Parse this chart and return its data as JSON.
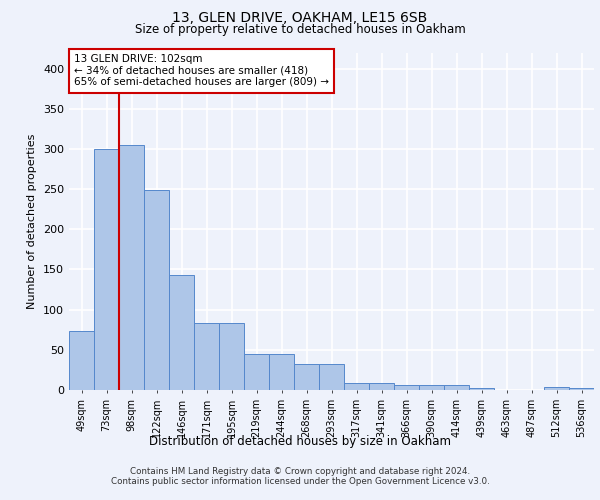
{
  "title1": "13, GLEN DRIVE, OAKHAM, LE15 6SB",
  "title2": "Size of property relative to detached houses in Oakham",
  "xlabel": "Distribution of detached houses by size in Oakham",
  "ylabel": "Number of detached properties",
  "footer1": "Contains HM Land Registry data © Crown copyright and database right 2024.",
  "footer2": "Contains public sector information licensed under the Open Government Licence v3.0.",
  "categories": [
    "49sqm",
    "73sqm",
    "98sqm",
    "122sqm",
    "146sqm",
    "171sqm",
    "195sqm",
    "219sqm",
    "244sqm",
    "268sqm",
    "293sqm",
    "317sqm",
    "341sqm",
    "366sqm",
    "390sqm",
    "414sqm",
    "439sqm",
    "463sqm",
    "487sqm",
    "512sqm",
    "536sqm"
  ],
  "values": [
    73,
    300,
    305,
    249,
    143,
    83,
    83,
    45,
    45,
    32,
    32,
    9,
    9,
    6,
    6,
    6,
    2,
    0,
    0,
    4,
    3
  ],
  "bar_color": "#aec6e8",
  "bar_edge_color": "#5588cc",
  "annotation_box_text1": "13 GLEN DRIVE: 102sqm",
  "annotation_box_text2": "← 34% of detached houses are smaller (418)",
  "annotation_box_text3": "65% of semi-detached houses are larger (809) →",
  "annotation_line_color": "#cc0000",
  "annotation_box_edge_color": "#cc0000",
  "ylim": [
    0,
    420
  ],
  "yticks": [
    0,
    50,
    100,
    150,
    200,
    250,
    300,
    350,
    400
  ],
  "background_color": "#eef2fb",
  "plot_bg_color": "#eef2fb",
  "grid_color": "#ffffff"
}
